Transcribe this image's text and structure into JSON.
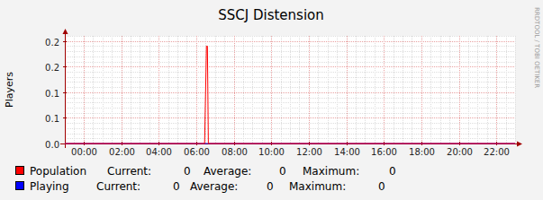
{
  "chart_data": {
    "type": "line",
    "title": "SSCJ Distension",
    "y_label": "Players",
    "watermark": "RRDTOOL / TOBI OETIKER",
    "x": [
      -1,
      6.45,
      6.55,
      6.6,
      6.65,
      23
    ],
    "series": [
      {
        "name": "Population",
        "color": "#ff0000",
        "values": [
          0,
          0,
          0.19,
          0.19,
          0,
          0
        ],
        "stats": [
          {
            "label": "Current:",
            "value": 0
          },
          {
            "label": "Average:",
            "value": 0
          },
          {
            "label": "Maximum:",
            "value": 0
          }
        ]
      },
      {
        "name": "Playing",
        "color": "#0000ff",
        "values": [
          0,
          0,
          0,
          0,
          0,
          0
        ],
        "stats": [
          {
            "label": "Current:",
            "value": 0
          },
          {
            "label": "Average:",
            "value": 0
          },
          {
            "label": "Maximum:",
            "value": 0
          }
        ]
      }
    ],
    "xlim": [
      -1,
      23
    ],
    "xticks": [
      {
        "value": 0,
        "label": "00:00"
      },
      {
        "value": 2,
        "label": "02:00"
      },
      {
        "value": 4,
        "label": "04:00"
      },
      {
        "value": 6,
        "label": "06:00"
      },
      {
        "value": 8,
        "label": "08:00"
      },
      {
        "value": 10,
        "label": "10:00"
      },
      {
        "value": 12,
        "label": "12:00"
      },
      {
        "value": 14,
        "label": "14:00"
      },
      {
        "value": 16,
        "label": "16:00"
      },
      {
        "value": 18,
        "label": "18:00"
      },
      {
        "value": 20,
        "label": "20:00"
      },
      {
        "value": 22,
        "label": "22:00"
      }
    ],
    "ylim": [
      0,
      0.21
    ],
    "yticks": [
      {
        "value": 0,
        "label": "0.0"
      },
      {
        "value": 0.05,
        "label": "0.1"
      },
      {
        "value": 0.1,
        "label": "0.1"
      },
      {
        "value": 0.15,
        "label": "0.2"
      },
      {
        "value": 0.2,
        "label": "0.2"
      }
    ],
    "grid": true,
    "legend": "bottom"
  }
}
